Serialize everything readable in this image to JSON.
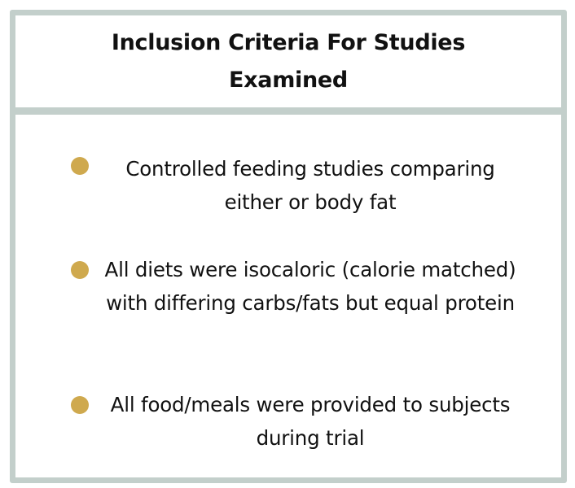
{
  "card": {
    "title": "Inclusion Criteria For Studies Examined",
    "items": [
      {
        "text": "Controlled feeding studies comparing either or body fat"
      },
      {
        "text": "All diets were isocaloric (calorie matched) with differing carbs/fats but equal protein"
      },
      {
        "text": "All food/meals were provided to subjects during trial"
      }
    ]
  },
  "colors": {
    "border": "#c3cfcb",
    "bullet": "#cfa94e",
    "text": "#111111",
    "background": "#ffffff"
  },
  "icons": {
    "bullet": "bullet-dot-icon"
  }
}
